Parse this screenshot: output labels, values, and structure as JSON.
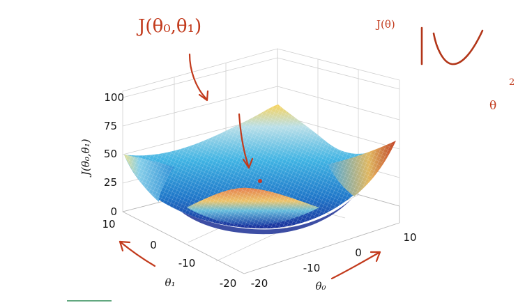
{
  "annotations": {
    "main_label": "J(θ₀,θ₁)",
    "side_label": "J(θ)",
    "side_theta": "θ",
    "side_exponent": "2"
  },
  "colors": {
    "ink": "#c23a1c",
    "colormap": "parula (blue → cyan → yellow)",
    "minimum_point": "#c0392b"
  },
  "chart_data": {
    "type": "surface",
    "subtype": "3d-bowl-mesh",
    "zlabel": "J(θ₀,θ₁)",
    "xlabel": "θ₀",
    "ylabel": "θ₁",
    "z_ticks": [
      "0",
      "25",
      "50",
      "75",
      "100"
    ],
    "x_ticks": [
      "-20",
      "-10",
      "0",
      "10"
    ],
    "y_ticks": [
      "-20",
      "-10",
      "0",
      "10"
    ],
    "zlim": [
      0,
      100
    ],
    "xlim": [
      -20,
      10
    ],
    "ylim": [
      -20,
      10
    ],
    "grid": true
  }
}
